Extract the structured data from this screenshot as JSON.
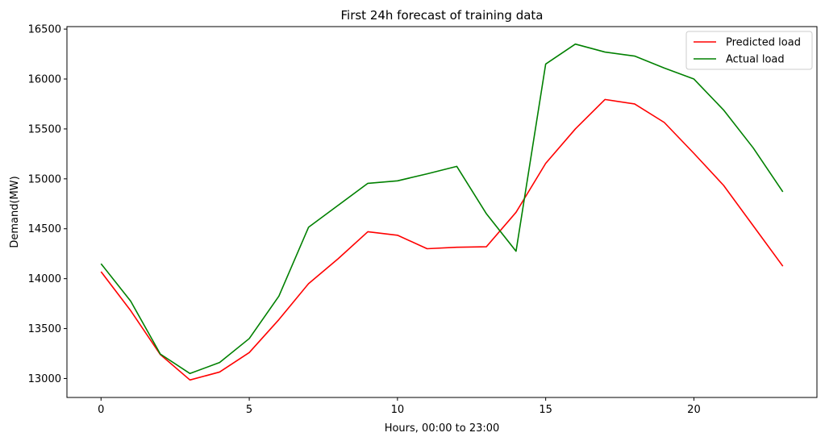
{
  "chart_data": {
    "type": "line",
    "title": "First 24h forecast of training data",
    "xlabel": "Hours, 00:00 to 23:00",
    "ylabel": "Demand(MW)",
    "x": [
      0,
      1,
      2,
      3,
      4,
      5,
      6,
      7,
      8,
      9,
      10,
      11,
      12,
      13,
      14,
      15,
      16,
      17,
      18,
      19,
      20,
      21,
      22,
      23
    ],
    "xlim": [
      -1.15,
      24.15
    ],
    "ylim": [
      12810,
      16525
    ],
    "xticks": [
      0,
      5,
      10,
      15,
      20
    ],
    "yticks": [
      13000,
      13500,
      14000,
      14500,
      15000,
      15500,
      16000,
      16500
    ],
    "xtick_labels": [
      "0",
      "5",
      "10",
      "15",
      "20"
    ],
    "ytick_labels": [
      "13000",
      "13500",
      "14000",
      "14500",
      "15000",
      "15500",
      "16000",
      "16500"
    ],
    "grid": false,
    "legend_position": "top-right",
    "series": [
      {
        "name": "Predicted load",
        "color": "#ff0000",
        "values": [
          14070,
          13680,
          13240,
          12985,
          13065,
          13260,
          13590,
          13950,
          14200,
          14470,
          14435,
          14300,
          14315,
          14320,
          14665,
          15155,
          15500,
          15795,
          15750,
          15565,
          15255,
          14935,
          14530,
          14125
        ]
      },
      {
        "name": "Actual load",
        "color": "#008000",
        "values": [
          14150,
          13775,
          13245,
          13050,
          13160,
          13400,
          13825,
          14515,
          14735,
          14955,
          14980,
          15050,
          15125,
          14650,
          14275,
          16150,
          16350,
          16270,
          16230,
          16110,
          16000,
          15690,
          15310,
          14870
        ]
      }
    ]
  }
}
